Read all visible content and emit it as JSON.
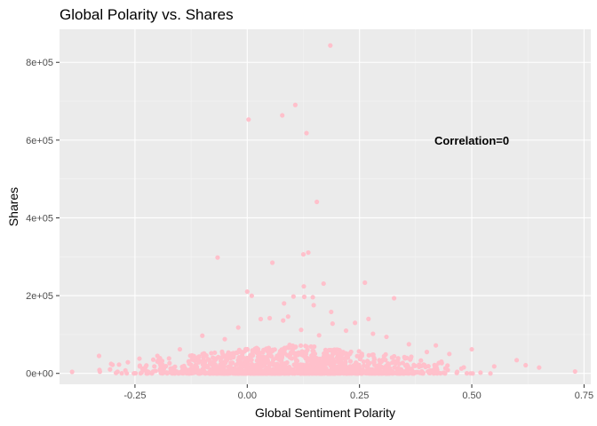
{
  "chart_data": {
    "type": "scatter",
    "title": "Global Polarity vs. Shares",
    "xlabel": "Global Sentiment Polarity",
    "ylabel": "Shares",
    "xlim": [
      -0.418,
      0.765
    ],
    "ylim": [
      -28000,
      885000
    ],
    "x_ticks": [
      -0.25,
      0.0,
      0.25,
      0.5,
      0.75
    ],
    "x_tick_labels": [
      "-0.25",
      "0.00",
      "0.25",
      "0.50",
      "0.75"
    ],
    "y_ticks": [
      0,
      200000,
      400000,
      600000,
      800000
    ],
    "y_tick_labels": [
      "0e+00",
      "2e+05",
      "4e+05",
      "6e+05",
      "8e+05"
    ],
    "grid": true,
    "point_color": "#ffc0cb",
    "panel_color": "#ebebeb",
    "annotation": {
      "text": "Correlation=0",
      "x": 0.5,
      "y": 600000
    },
    "points": [
      [
        0.185,
        843300
      ],
      [
        0.107,
        690400
      ],
      [
        0.003,
        652900
      ],
      [
        0.078,
        663600
      ],
      [
        0.132,
        617900
      ],
      [
        0.155,
        441000
      ],
      [
        0.136,
        310800
      ],
      [
        0.125,
        306100
      ],
      [
        -0.066,
        298000
      ],
      [
        0.056,
        284700
      ],
      [
        0.0,
        210300
      ],
      [
        0.103,
        197700
      ],
      [
        0.327,
        193400
      ],
      [
        0.146,
        195800
      ],
      [
        0.126,
        223800
      ],
      [
        0.262,
        233400
      ],
      [
        0.17,
        230900
      ],
      [
        0.148,
        175400
      ],
      [
        0.01,
        199600
      ],
      [
        0.127,
        196800
      ],
      [
        0.082,
        180000
      ],
      [
        0.187,
        158100
      ],
      [
        0.091,
        146200
      ],
      [
        0.27,
        140100
      ],
      [
        0.03,
        139800
      ],
      [
        0.24,
        130000
      ],
      [
        -0.1,
        97000
      ],
      [
        0.22,
        110000
      ],
      [
        0.45,
        50000
      ],
      [
        -0.05,
        88000
      ],
      [
        0.36,
        75000
      ],
      [
        0.5,
        62000
      ],
      [
        0.4,
        55000
      ],
      [
        0.6,
        34000
      ],
      [
        -0.2,
        45000
      ],
      [
        -0.33,
        45000
      ],
      [
        0.62,
        21000
      ],
      [
        0.65,
        15000
      ],
      [
        0.73,
        5000
      ],
      [
        -0.39,
        4000
      ],
      [
        -0.3,
        22000
      ],
      [
        -0.24,
        38000
      ],
      [
        0.55,
        18000
      ],
      [
        0.28,
        102000
      ],
      [
        0.19,
        128000
      ],
      [
        0.05,
        142000
      ],
      [
        -0.02,
        118000
      ],
      [
        0.12,
        112000
      ],
      [
        0.31,
        94000
      ],
      [
        0.42,
        72000
      ],
      [
        -0.15,
        62000
      ],
      [
        0.08,
        136000
      ],
      [
        0.16,
        98000
      ],
      [
        0.35,
        42000
      ],
      [
        -0.08,
        52000
      ]
    ]
  }
}
